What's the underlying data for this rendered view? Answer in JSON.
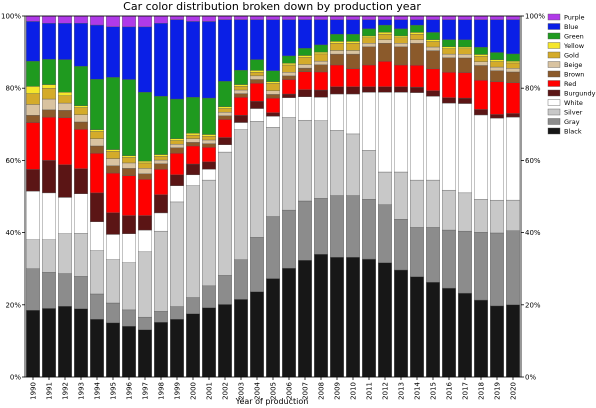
{
  "chart_data": {
    "type": "bar",
    "stacked": true,
    "title": "Car color distribution broken down by production year",
    "xlabel": "Year of production",
    "ylabel": "",
    "ylim": [
      0,
      100
    ],
    "y_ticks": [
      "0%",
      "20%",
      "40%",
      "60%",
      "80%",
      "100%"
    ],
    "y_ticks_right": true,
    "legend_position": "right",
    "categories": [
      "1990",
      "1991",
      "1992",
      "1993",
      "1994",
      "1995",
      "1996",
      "1997",
      "1998",
      "1999",
      "2000",
      "2001",
      "2002",
      "2003",
      "2004",
      "2005",
      "2006",
      "2007",
      "2008",
      "2009",
      "2010",
      "2011",
      "2012",
      "2013",
      "2014",
      "2015",
      "2016",
      "2017",
      "2018",
      "2019",
      "2020"
    ],
    "series": [
      {
        "name": "Black",
        "color": "#171717",
        "values": [
          18.5,
          19,
          19.5,
          19,
          16,
          15,
          14,
          13,
          15,
          16,
          17.5,
          19,
          20,
          21.5,
          23.5,
          27,
          30,
          32.5,
          34,
          33,
          33,
          32.5,
          31.5,
          29.5,
          27.5,
          26,
          24.5,
          23,
          21,
          19.5,
          20
        ]
      },
      {
        "name": "Gray",
        "color": "#8c8c8c",
        "values": [
          11.5,
          10,
          9,
          9,
          7,
          5.5,
          4.5,
          3.5,
          3,
          3.5,
          4.5,
          6,
          8,
          11,
          15,
          17,
          16,
          16.5,
          15.5,
          17,
          17,
          16.5,
          16,
          14,
          13.5,
          15,
          16,
          17,
          18.5,
          20,
          20.5
        ]
      },
      {
        "name": "Silver",
        "color": "#c8c8c8",
        "values": [
          8,
          9,
          11,
          12,
          12,
          12,
          13,
          18,
          22,
          29,
          31,
          29,
          34,
          36,
          32,
          24.5,
          25.5,
          22.5,
          21.5,
          18,
          17,
          13.5,
          9,
          13,
          13,
          13,
          11,
          10.5,
          9,
          9,
          8.5
        ]
      },
      {
        "name": "White",
        "color": "#ffffff",
        "values": [
          13.5,
          13,
          10,
          11,
          8,
          7,
          8,
          6,
          5,
          4.5,
          3,
          3,
          2,
          2,
          3.5,
          3,
          5.5,
          6.5,
          6.5,
          10,
          11,
          16,
          22,
          22,
          24,
          23,
          24,
          24.5,
          23,
          22.5,
          23
        ]
      },
      {
        "name": "Burgundy",
        "color": "#5b1515",
        "values": [
          6,
          9,
          9,
          7,
          8,
          6,
          5,
          4,
          5,
          3,
          3,
          2,
          2,
          2,
          2,
          1,
          1,
          2,
          2,
          2,
          2,
          1.5,
          1.5,
          1.5,
          1.5,
          1.5,
          1.5,
          1.5,
          1.5,
          1,
          1
        ]
      },
      {
        "name": "Red",
        "color": "#ff0000",
        "values": [
          13,
          12,
          13,
          11,
          11,
          11,
          11,
          10,
          7,
          6,
          5,
          4,
          5,
          5,
          5,
          4,
          4,
          5,
          5,
          6,
          5,
          6,
          7,
          6,
          6,
          6,
          7,
          7,
          8,
          9,
          8.5
        ]
      },
      {
        "name": "Brown",
        "color": "#8b5a2b",
        "values": [
          2,
          2,
          2,
          2,
          2,
          2,
          2,
          1.5,
          1.5,
          1.5,
          1,
          1,
          1,
          1,
          1,
          1,
          1,
          1,
          2,
          3,
          4,
          5,
          5,
          5,
          6,
          5,
          4,
          4,
          4,
          3,
          3
        ]
      },
      {
        "name": "Beige",
        "color": "#d9c3a0",
        "values": [
          3,
          3,
          2,
          2,
          2,
          2,
          1.5,
          1.5,
          1,
          1,
          1,
          1,
          1,
          1,
          1,
          1,
          1,
          1,
          1,
          1,
          1,
          1,
          1,
          1,
          1,
          1,
          1,
          1,
          1,
          1,
          1
        ]
      },
      {
        "name": "Gold",
        "color": "#d4ab2a",
        "values": [
          3,
          3,
          2,
          2,
          2,
          2,
          1.5,
          1.5,
          1,
          1,
          1,
          1,
          1,
          1,
          1,
          2,
          2,
          2,
          2,
          2,
          2,
          1.5,
          1.5,
          1.5,
          1.5,
          1.5,
          1.5,
          1.5,
          1.5,
          1.5,
          1.5
        ]
      },
      {
        "name": "Yellow",
        "color": "#f5e62a",
        "values": [
          2,
          1,
          1,
          0.5,
          0.5,
          0.5,
          0.5,
          0.5,
          0.5,
          0.5,
          0.5,
          0.5,
          0.5,
          0.5,
          0.5,
          0.5,
          0.5,
          0.5,
          0.5,
          0.5,
          0.5,
          0.5,
          0.5,
          0.5,
          0.5,
          0.5,
          0.5,
          0.5,
          0.5,
          0.5,
          0.5
        ]
      },
      {
        "name": "Green",
        "color": "#1f9a1f",
        "values": [
          7,
          7,
          9,
          11,
          14,
          20,
          21,
          19,
          16,
          11,
          10,
          10,
          7,
          4,
          3,
          3,
          2,
          2,
          2,
          2,
          2,
          2,
          2,
          2,
          2,
          2,
          2,
          2,
          2,
          2,
          2
        ]
      },
      {
        "name": "Blue",
        "color": "#0a1fe6",
        "values": [
          11,
          10,
          10,
          12,
          15,
          14,
          14.5,
          18,
          20,
          22,
          21,
          21,
          17,
          14,
          11,
          14,
          10,
          8,
          7,
          4,
          4,
          2.5,
          1.5,
          2.5,
          1.5,
          3.5,
          5.5,
          5.5,
          7.5,
          9,
          9.5
        ]
      },
      {
        "name": "Purple",
        "color": "#b03ae8",
        "values": [
          1.5,
          2,
          2,
          2,
          2.5,
          3,
          3,
          3,
          2,
          1,
          1.5,
          1.5,
          1,
          1,
          1,
          1,
          1,
          1,
          1,
          1,
          1,
          1,
          1,
          1,
          1,
          1,
          1,
          1,
          1,
          1,
          1
        ]
      }
    ]
  }
}
